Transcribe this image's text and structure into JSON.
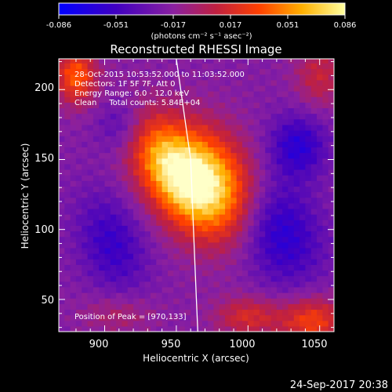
{
  "chart_data": {
    "type": "heatmap",
    "title": "Reconstructed RHESSI Image",
    "xlabel": "Heliocentric X (arcsec)",
    "ylabel": "Heliocentric Y (arcsec)",
    "xlim": [
      868,
      1060
    ],
    "ylim": [
      27,
      222
    ],
    "x_ticks": [
      900,
      950,
      1000,
      1050
    ],
    "y_ticks": [
      50,
      100,
      150,
      200
    ],
    "grid": false,
    "colorbar": {
      "range": [
        -0.086,
        0.086
      ],
      "ticks": [
        "-0.086",
        "-0.051",
        "-0.017",
        "0.017",
        "0.051",
        "0.086"
      ],
      "unit_label": "(photons cm⁻² s⁻¹ asec⁻²)"
    },
    "annotations": [
      "28-Oct-2015 10:53:52.000 to 11:03:52.000",
      "Detectors: 1F 5F 7F, Att 0",
      "Energy Range: 6.0 - 12.0 keV",
      "Clean     Total counts: 5.84E+04"
    ],
    "peak_label": "Position of Peak = [970,133]",
    "peak": [
      970,
      133
    ],
    "limb_curve": [
      [
        950,
        222
      ],
      [
        960,
        150
      ],
      [
        962,
        100
      ],
      [
        964,
        50
      ],
      [
        965,
        27
      ]
    ]
  },
  "footer": {
    "timestamp": "24-Sep-2017 20:38"
  }
}
